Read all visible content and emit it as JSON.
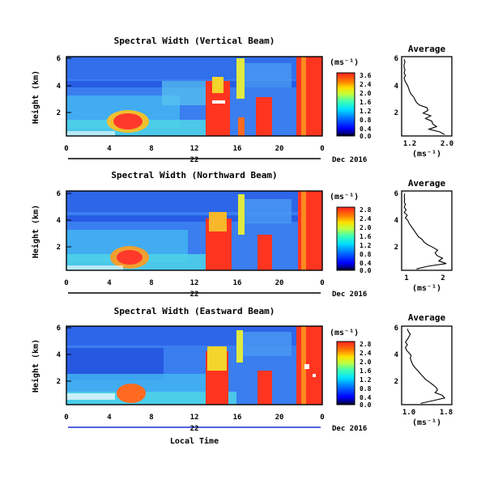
{
  "chart_data": [
    {
      "type": "heatmap",
      "title": "Spectral Width (Vertical Beam)",
      "ylabel": "Height (km)",
      "x_ticks": [
        "0",
        "4",
        "8",
        "12",
        "16",
        "20",
        "0"
      ],
      "y_ticks": [
        "6",
        "4",
        "2"
      ],
      "date_day": "22",
      "date_label": "Dec 2016",
      "colorbar": {
        "unit": "(ms⁻¹)",
        "ticks": [
          "3.6",
          "2.4",
          "2.0",
          "1.6",
          "1.2",
          "0.8",
          "0.4",
          "0.0"
        ]
      },
      "profile": {
        "title": "Average",
        "xlabel": "(ms⁻¹)",
        "x_ticks": [
          "1.2",
          "2.0"
        ],
        "y_ticks": [
          "6",
          "4",
          "2"
        ],
        "xlim": [
          1.05,
          2.1
        ],
        "ylim": [
          0.2,
          6.1
        ],
        "heights": [
          0.3,
          0.5,
          0.7,
          0.9,
          1.1,
          1.3,
          1.5,
          1.7,
          1.9,
          2.1,
          2.3,
          2.5,
          2.7,
          2.9,
          3.1,
          3.3,
          3.5,
          3.7,
          3.9,
          4.1,
          4.3,
          4.5,
          4.7,
          4.9,
          5.1,
          5.3,
          5.5,
          5.7,
          5.9
        ],
        "values": [
          1.95,
          1.85,
          1.62,
          1.78,
          1.7,
          1.68,
          1.55,
          1.66,
          1.5,
          1.6,
          1.58,
          1.42,
          1.36,
          1.33,
          1.3,
          1.25,
          1.22,
          1.2,
          1.18,
          1.15,
          1.12,
          1.1,
          1.13,
          1.1,
          1.12,
          1.1,
          1.1,
          1.12,
          1.1
        ]
      }
    },
    {
      "type": "heatmap",
      "title": "Spectral Width (Northward Beam)",
      "ylabel": "Height (km)",
      "x_ticks": [
        "0",
        "4",
        "8",
        "12",
        "16",
        "20",
        "0"
      ],
      "y_ticks": [
        "6",
        "4",
        "2"
      ],
      "date_day": "22",
      "date_label": "Dec 2016",
      "colorbar": {
        "unit": "(ms⁻¹)",
        "ticks": [
          "2.8",
          "2.4",
          "2.0",
          "1.6",
          "1.2",
          "0.8",
          "0.4",
          "0.0"
        ]
      },
      "profile": {
        "title": "Average",
        "xlabel": "(ms⁻¹)",
        "x_ticks": [
          "1",
          "2"
        ],
        "y_ticks": [
          "6",
          "4",
          "2"
        ],
        "xlim": [
          0.85,
          2.2
        ],
        "ylim": [
          0.2,
          6.1
        ],
        "heights": [
          0.3,
          0.5,
          0.7,
          0.9,
          1.1,
          1.3,
          1.5,
          1.7,
          1.9,
          2.1,
          2.3,
          2.5,
          2.7,
          2.9,
          3.1,
          3.3,
          3.5,
          3.7,
          3.9,
          4.1,
          4.3,
          4.5,
          4.7,
          4.9,
          5.1,
          5.3,
          5.5,
          5.7,
          5.9
        ],
        "values": [
          1.25,
          1.55,
          2.05,
          1.85,
          1.95,
          1.8,
          1.75,
          1.82,
          1.7,
          1.55,
          1.45,
          1.4,
          1.3,
          1.25,
          1.2,
          1.15,
          1.1,
          1.05,
          1.02,
          0.95,
          1.0,
          0.92,
          0.97,
          0.92,
          0.95,
          0.92,
          0.93,
          0.92,
          0.93
        ]
      }
    },
    {
      "type": "heatmap",
      "title": "Spectral Width (Eastward Beam)",
      "ylabel": "Height (km)",
      "x_ticks": [
        "0",
        "4",
        "8",
        "12",
        "16",
        "20",
        "0"
      ],
      "y_ticks": [
        "6",
        "4",
        "2"
      ],
      "date_day": "22",
      "date_label": "Dec 2016",
      "xlabel": "Local Time",
      "colorbar": {
        "unit": "(ms⁻¹)",
        "ticks": [
          "2.8",
          "2.4",
          "2.0",
          "1.6",
          "1.2",
          "0.8",
          "0.4",
          "0.0"
        ]
      },
      "profile": {
        "title": "Average",
        "xlabel": "(ms⁻¹)",
        "x_ticks": [
          "1.0",
          "1.8"
        ],
        "y_ticks": [
          "6",
          "4",
          "2"
        ],
        "xlim": [
          0.9,
          1.95
        ],
        "ylim": [
          0.2,
          6.1
        ],
        "heights": [
          0.3,
          0.5,
          0.7,
          0.9,
          1.1,
          1.3,
          1.5,
          1.7,
          1.9,
          2.1,
          2.3,
          2.5,
          2.7,
          2.9,
          3.1,
          3.3,
          3.5,
          3.7,
          3.9,
          4.1,
          4.3,
          4.5,
          4.7,
          4.9,
          5.1,
          5.3,
          5.5,
          5.7,
          5.9
        ],
        "values": [
          1.3,
          1.55,
          1.8,
          1.75,
          1.6,
          1.65,
          1.62,
          1.55,
          1.48,
          1.4,
          1.35,
          1.3,
          1.25,
          1.2,
          1.15,
          1.12,
          1.1,
          1.08,
          1.1,
          1.05,
          1.0,
          0.98,
          1.02,
          0.98,
          1.02,
          1.05,
          1.08,
          1.04,
          1.02
        ]
      }
    }
  ]
}
